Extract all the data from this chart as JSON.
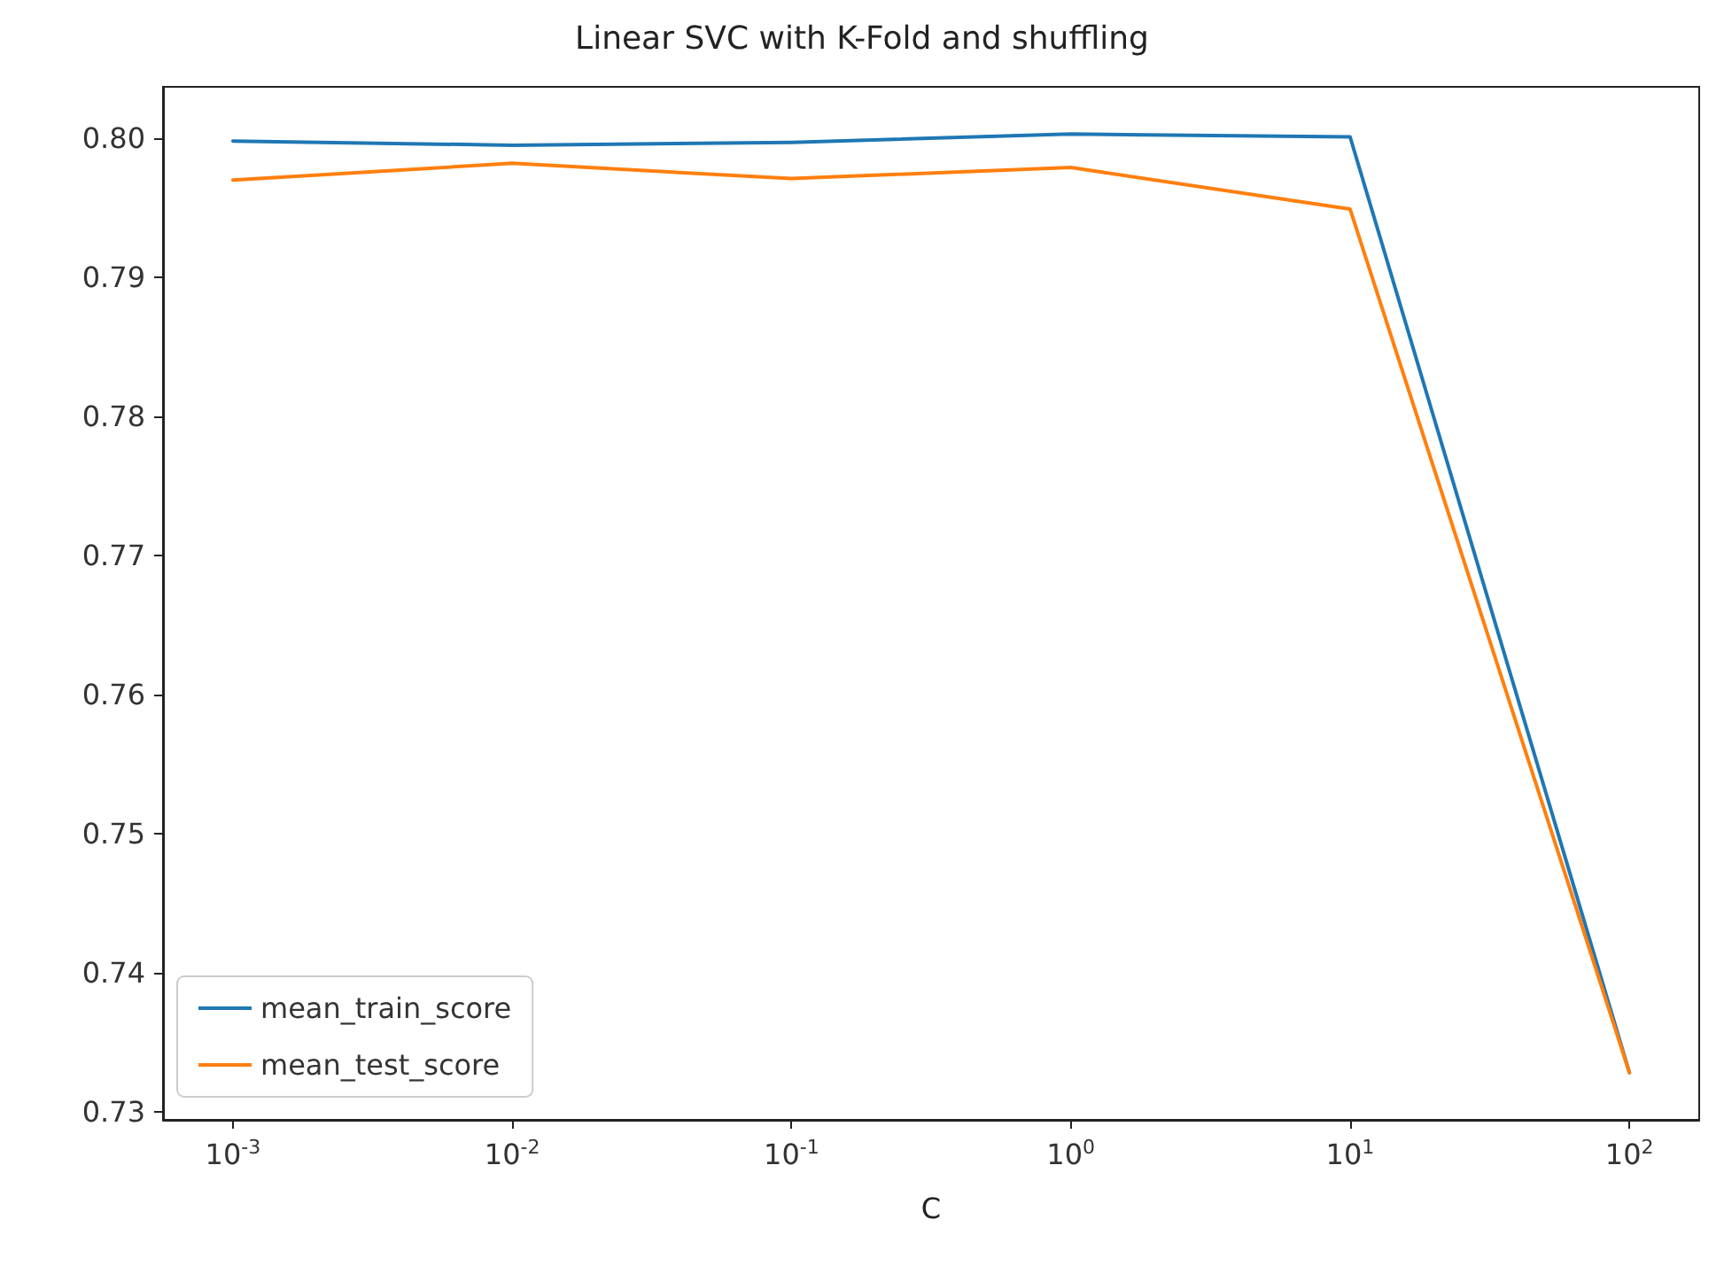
{
  "chart_data": {
    "type": "line",
    "title": "Linear SVC with K-Fold and shuffling",
    "xlabel": "C",
    "x": [
      0.001,
      0.01,
      0.1,
      1,
      10,
      100
    ],
    "series": [
      {
        "name": "mean_train_score",
        "color": "#1f77b4",
        "values": [
          0.7998,
          0.7995,
          0.7997,
          0.8003,
          0.8001,
          0.7328
        ]
      },
      {
        "name": "mean_test_score",
        "color": "#ff7f0e",
        "values": [
          0.797,
          0.7982,
          0.7971,
          0.7979,
          0.7949,
          0.7328
        ]
      }
    ],
    "log": "x",
    "xlim": [
      0.000562,
      177.8
    ],
    "xticks": [
      {
        "value": 0.001,
        "label": "10$^{-3}$"
      },
      {
        "value": 0.01,
        "label": "10$^{-2}$"
      },
      {
        "value": 0.1,
        "label": "10$^{-1}$"
      },
      {
        "value": 1,
        "label": "10$^{0}$"
      },
      {
        "value": 10,
        "label": "10$^{1}$"
      },
      {
        "value": 100,
        "label": "10$^{2}$"
      }
    ],
    "ylim": [
      0.7294,
      0.8037
    ],
    "yticks": [
      0.73,
      0.74,
      0.75,
      0.76,
      0.77,
      0.78,
      0.79,
      {
        "value": 0.8,
        "label": "0.80"
      }
    ],
    "grid": false,
    "legend": "bottom left",
    "marker": "none",
    "line_style": "solid"
  }
}
